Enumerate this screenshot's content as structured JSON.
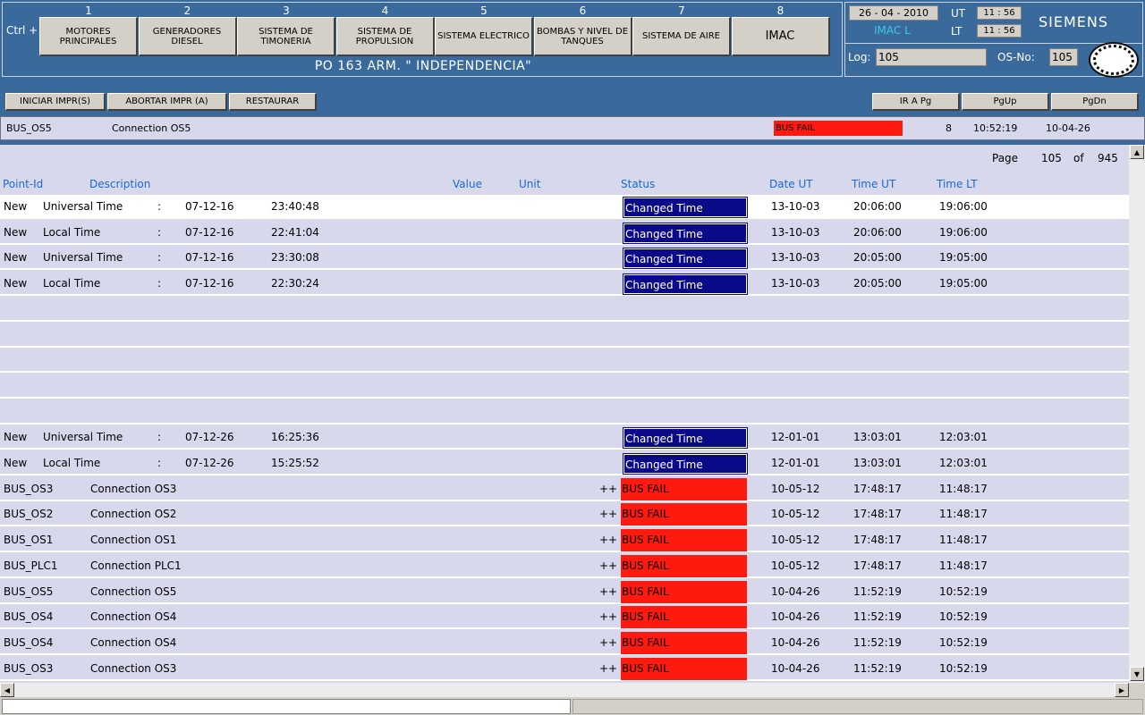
{
  "header": {
    "ctrl_label": "Ctrl +",
    "nav": [
      {
        "num": "1",
        "label": "MOTORES PRINCIPALES"
      },
      {
        "num": "2",
        "label": "GENERADORES DIESEL"
      },
      {
        "num": "3",
        "label": "SISTEMA DE TIMONERIA"
      },
      {
        "num": "4",
        "label": "SISTEMA DE PROPULSION"
      },
      {
        "num": "5",
        "label": "SISTEMA ELECTRICO"
      },
      {
        "num": "6",
        "label": "BOMBAS Y NIVEL DE TANQUES"
      },
      {
        "num": "7",
        "label": "SISTEMA DE AIRE"
      },
      {
        "num": "8",
        "label": "IMAC"
      }
    ],
    "ship_title": "PO 163 ARM. \" INDEPENDENCIA\"",
    "date": "26 - 04 - 2010",
    "imac_label": "IMAC L",
    "ut_label": "UT",
    "ut_time": "11 : 56",
    "lt_label": "LT",
    "lt_time": "11 : 56",
    "brand": "SIEMENS",
    "log_label": "Log:",
    "log_value": "105",
    "osno_label": "OS-No:",
    "osno_value": "105"
  },
  "toolbar": {
    "print_start": "INICIAR IMPR(S)",
    "print_abort": "ABORTAR IMPR (A)",
    "restore": "RESTAURAR",
    "goto_page": "IR A Pg",
    "page_up": "PgUp",
    "page_down": "PgDn"
  },
  "alarm": {
    "point_id": "BUS_OS5",
    "description": "Connection OS5",
    "status": "BUS FAIL",
    "priority": "8",
    "time": "10:52:19",
    "date": "10-04-26"
  },
  "list": {
    "page_label": "Page",
    "page_current": "105",
    "page_of": "of",
    "page_total": "945",
    "columns": {
      "point_id": "Point-Id",
      "description": "Description",
      "value": "Value",
      "unit": "Unit",
      "status": "Status",
      "date_ut": "Date UT",
      "time_ut": "Time UT",
      "time_lt": "Time LT"
    },
    "time_rows": [
      {
        "prefix": "New",
        "name": "Universal Time",
        "sep": ":",
        "d": "07-12-16",
        "t": "23:40:48",
        "status": "Changed Time",
        "date_ut": "13-10-03",
        "time_ut": "20:06:00",
        "time_lt": "19:06:00"
      },
      {
        "prefix": "New",
        "name": "Local Time",
        "sep": ":",
        "d": "07-12-16",
        "t": "22:41:04",
        "status": "Changed Time",
        "date_ut": "13-10-03",
        "time_ut": "20:06:00",
        "time_lt": "19:06:00"
      },
      {
        "prefix": "New",
        "name": "Universal Time",
        "sep": ":",
        "d": "07-12-16",
        "t": "23:30:08",
        "status": "Changed Time",
        "date_ut": "13-10-03",
        "time_ut": "20:05:00",
        "time_lt": "19:05:00"
      },
      {
        "prefix": "New",
        "name": "Local Time",
        "sep": ":",
        "d": "07-12-16",
        "t": "22:30:24",
        "status": "Changed Time",
        "date_ut": "13-10-03",
        "time_ut": "20:05:00",
        "time_lt": "19:05:00"
      }
    ],
    "time_rows2": [
      {
        "prefix": "New",
        "name": "Universal Time",
        "sep": ":",
        "d": "07-12-26",
        "t": "16:25:36",
        "status": "Changed Time",
        "date_ut": "12-01-01",
        "time_ut": "13:03:01",
        "time_lt": "12:03:01"
      },
      {
        "prefix": "New",
        "name": "Local Time",
        "sep": ":",
        "d": "07-12-26",
        "t": "15:25:52",
        "status": "Changed Time",
        "date_ut": "12-01-01",
        "time_ut": "13:03:01",
        "time_lt": "12:03:01"
      }
    ],
    "bus_rows": [
      {
        "id": "BUS_OS3",
        "desc": "Connection OS3",
        "mark": "++",
        "status": "BUS FAIL",
        "date_ut": "10-05-12",
        "time_ut": "17:48:17",
        "time_lt": "11:48:17"
      },
      {
        "id": "BUS_OS2",
        "desc": "Connection OS2",
        "mark": "++",
        "status": "BUS FAIL",
        "date_ut": "10-05-12",
        "time_ut": "17:48:17",
        "time_lt": "11:48:17"
      },
      {
        "id": "BUS_OS1",
        "desc": "Connection OS1",
        "mark": "++",
        "status": "BUS FAIL",
        "date_ut": "10-05-12",
        "time_ut": "17:48:17",
        "time_lt": "11:48:17"
      },
      {
        "id": "BUS_PLC1",
        "desc": "Connection PLC1",
        "mark": "++",
        "status": "BUS FAIL",
        "date_ut": "10-05-12",
        "time_ut": "17:48:17",
        "time_lt": "11:48:17"
      },
      {
        "id": "BUS_OS5",
        "desc": "Connection OS5",
        "mark": "++",
        "status": "BUS FAIL",
        "date_ut": "10-04-26",
        "time_ut": "11:52:19",
        "time_lt": "10:52:19"
      },
      {
        "id": "BUS_OS4",
        "desc": "Connection OS4",
        "mark": "++",
        "status": "BUS FAIL",
        "date_ut": "10-04-26",
        "time_ut": "11:52:19",
        "time_lt": "10:52:19"
      },
      {
        "id": "BUS_OS4",
        "desc": "Connection OS4",
        "mark": "++",
        "status": "BUS FAIL",
        "date_ut": "10-04-26",
        "time_ut": "11:52:19",
        "time_lt": "10:52:19"
      },
      {
        "id": "BUS_OS3",
        "desc": "Connection OS3",
        "mark": "++",
        "status": "BUS FAIL",
        "date_ut": "10-04-26",
        "time_ut": "11:52:19",
        "time_lt": "10:52:19"
      }
    ]
  },
  "colors": {
    "header_bg": "#3a6a9c",
    "alarm_red": "#ff1a10",
    "status_blue": "#0a0a88",
    "column_head": "#1a6ad0"
  },
  "icons": [
    "navy-seal-icon",
    "scroll-up-icon",
    "scroll-down-icon",
    "scroll-left-icon",
    "scroll-right-icon"
  ]
}
